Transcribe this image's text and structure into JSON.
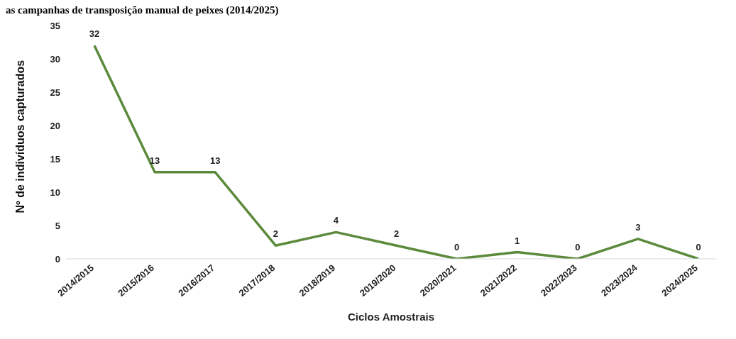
{
  "chart_data": {
    "type": "line",
    "title": "as campanhas de transposição manual de peixes (2014/2025)",
    "xlabel": "Ciclos Amostrais",
    "ylabel": "Nº de indivíduos capturados",
    "categories": [
      "2014/2015",
      "2015/2016",
      "2016/2017",
      "2017/2018",
      "2018/2019",
      "2019/2020",
      "2020/2021",
      "2021/2022",
      "2022/2023",
      "2023/2024",
      "2024/2025"
    ],
    "series": [
      {
        "color": "#5b8a3c",
        "values": [
          32,
          13,
          13,
          2,
          4,
          2,
          0,
          1,
          0,
          3,
          0
        ]
      }
    ],
    "ylim": [
      0,
      35
    ],
    "yticks": [
      0,
      5,
      10,
      15,
      20,
      25,
      30,
      35
    ],
    "grid": false,
    "legend": false,
    "data_labels": true,
    "marker": "none",
    "line_style": "solid"
  }
}
